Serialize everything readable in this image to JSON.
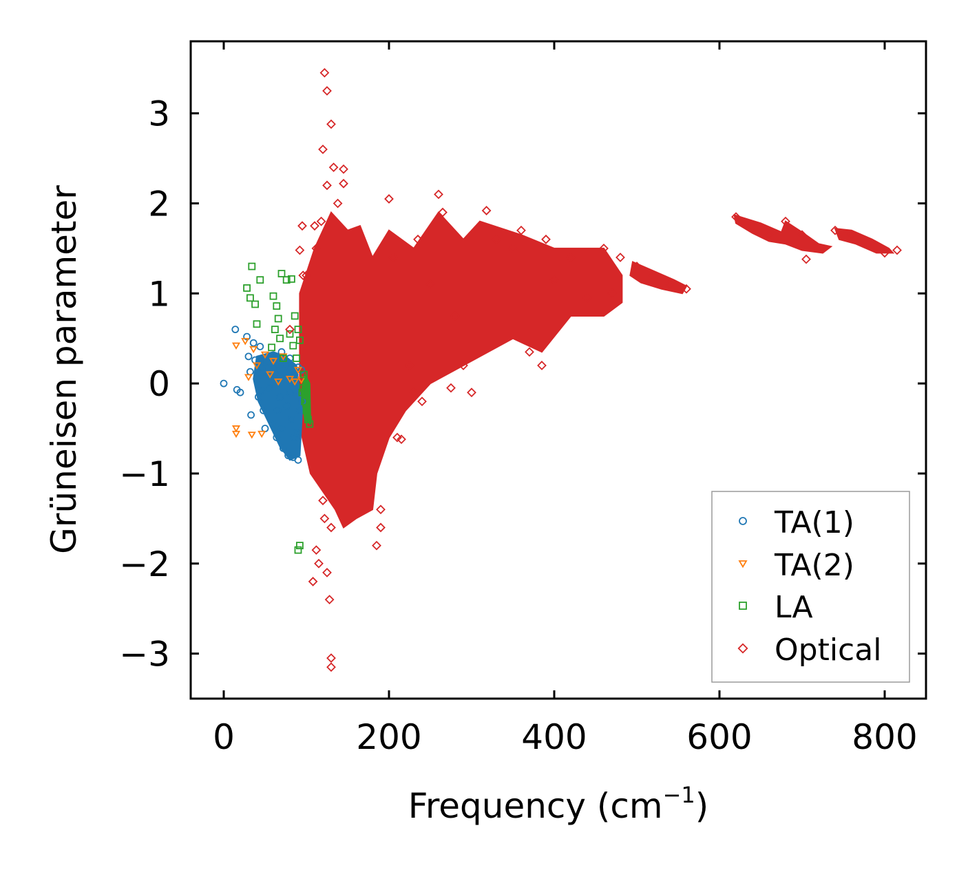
{
  "chart_data": {
    "type": "scatter",
    "xlabel": "Frequency (cm",
    "xlabel_superscript": "−1",
    "xlabel_suffix": ")",
    "ylabel": "Grüneisen parameter",
    "xlim": [
      -40,
      850
    ],
    "ylim": [
      -3.5,
      3.8
    ],
    "x_ticks": [
      0,
      200,
      400,
      600,
      800
    ],
    "x_tick_labels": [
      "0",
      "200",
      "400",
      "600",
      "800"
    ],
    "y_ticks": [
      -3,
      -2,
      -1,
      0,
      1,
      2,
      3
    ],
    "y_tick_labels": [
      "−3",
      "−2",
      "−1",
      "0",
      "1",
      "2",
      "3"
    ],
    "legend_position": "lower-right",
    "series": [
      {
        "name": "TA(1)",
        "marker": "circle",
        "color": "#1f77b4",
        "points": [
          [
            0,
            0
          ],
          [
            14,
            0.6
          ],
          [
            16,
            -0.07
          ],
          [
            20,
            -0.1
          ],
          [
            28,
            0.52
          ],
          [
            30,
            0.3
          ],
          [
            32,
            0.13
          ],
          [
            33,
            -0.35
          ],
          [
            36,
            0.45
          ],
          [
            38,
            0.26
          ],
          [
            40,
            0.05
          ],
          [
            42,
            -0.15
          ],
          [
            44,
            0.41
          ],
          [
            46,
            0.18
          ],
          [
            48,
            -0.3
          ],
          [
            50,
            -0.5
          ],
          [
            52,
            0.24
          ],
          [
            55,
            -0.05
          ],
          [
            58,
            0.3
          ],
          [
            60,
            -0.45
          ],
          [
            62,
            0.12
          ],
          [
            64,
            -0.6
          ],
          [
            66,
            0.2
          ],
          [
            68,
            -0.15
          ],
          [
            70,
            0.35
          ],
          [
            72,
            -0.72
          ],
          [
            74,
            0.05
          ],
          [
            76,
            -0.25
          ],
          [
            78,
            -0.8
          ],
          [
            80,
            0.28
          ],
          [
            82,
            -0.4
          ],
          [
            84,
            -0.82
          ],
          [
            86,
            0.1
          ],
          [
            88,
            -0.55
          ],
          [
            90,
            -0.85
          ],
          [
            92,
            -0.3
          ],
          [
            94,
            0.15
          ],
          [
            45,
            -0.08
          ],
          [
            55,
            0.1
          ],
          [
            65,
            -0.3
          ],
          [
            75,
            0.2
          ],
          [
            85,
            -0.6
          ],
          [
            95,
            -0.2
          ],
          [
            60,
            0.05
          ],
          [
            70,
            -0.5
          ],
          [
            80,
            -0.1
          ],
          [
            90,
            0.18
          ]
        ]
      },
      {
        "name": "TA(2)",
        "marker": "triangle-down",
        "color": "#ff7f0e",
        "points": [
          [
            15,
            0.42
          ],
          [
            15,
            -0.5
          ],
          [
            15,
            -0.56
          ],
          [
            26,
            0.47
          ],
          [
            30,
            0.07
          ],
          [
            34,
            -0.57
          ],
          [
            36,
            0.38
          ],
          [
            40,
            0.2
          ],
          [
            46,
            -0.56
          ],
          [
            50,
            0.32
          ],
          [
            56,
            0.1
          ],
          [
            60,
            0.25
          ],
          [
            66,
            0.02
          ],
          [
            72,
            0.3
          ],
          [
            80,
            0.05
          ],
          [
            86,
            0.02
          ],
          [
            90,
            0.15
          ],
          [
            94,
            0.04
          ]
        ]
      },
      {
        "name": "LA",
        "marker": "square",
        "color": "#2ca02c",
        "points": [
          [
            34,
            1.3
          ],
          [
            28,
            1.06
          ],
          [
            32,
            0.95
          ],
          [
            38,
            0.88
          ],
          [
            40,
            0.66
          ],
          [
            44,
            1.15
          ],
          [
            58,
            0.4
          ],
          [
            60,
            0.97
          ],
          [
            62,
            0.6
          ],
          [
            64,
            0.86
          ],
          [
            66,
            0.72
          ],
          [
            68,
            0.5
          ],
          [
            70,
            1.22
          ],
          [
            72,
            0.28
          ],
          [
            76,
            1.15
          ],
          [
            80,
            0.55
          ],
          [
            82,
            1.16
          ],
          [
            84,
            0.42
          ],
          [
            86,
            0.75
          ],
          [
            88,
            0.28
          ],
          [
            90,
            0.6
          ],
          [
            92,
            0.48
          ],
          [
            96,
            -0.05
          ],
          [
            98,
            -0.2
          ],
          [
            100,
            -0.3
          ],
          [
            102,
            -0.4
          ],
          [
            104,
            -0.45
          ],
          [
            90,
            -1.85
          ],
          [
            92,
            -1.8
          ],
          [
            95,
            -0.1
          ],
          [
            97,
            0.1
          ]
        ]
      },
      {
        "name": "Optical",
        "marker": "diamond",
        "color": "#d62728",
        "points": [
          [
            122,
            3.45
          ],
          [
            125,
            3.25
          ],
          [
            130,
            2.88
          ],
          [
            120,
            2.6
          ],
          [
            133,
            2.4
          ],
          [
            145,
            2.38
          ],
          [
            145,
            2.22
          ],
          [
            125,
            2.2
          ],
          [
            138,
            2.0
          ],
          [
            95,
            1.75
          ],
          [
            92,
            1.48
          ],
          [
            96,
            1.2
          ],
          [
            80,
            0.6
          ],
          [
            100,
            1.2
          ],
          [
            110,
            1.75
          ],
          [
            112,
            1.5
          ],
          [
            118,
            1.8
          ],
          [
            120,
            -1.3
          ],
          [
            122,
            -1.5
          ],
          [
            130,
            -1.6
          ],
          [
            112,
            -1.85
          ],
          [
            115,
            -2.0
          ],
          [
            108,
            -2.2
          ],
          [
            125,
            -2.1
          ],
          [
            128,
            -2.4
          ],
          [
            130,
            -3.05
          ],
          [
            130,
            -3.15
          ],
          [
            185,
            -1.8
          ],
          [
            190,
            -1.6
          ],
          [
            190,
            -1.4
          ],
          [
            200,
            2.05
          ],
          [
            205,
            1.4
          ],
          [
            210,
            -0.6
          ],
          [
            215,
            -0.62
          ],
          [
            225,
            0.2
          ],
          [
            230,
            -0.1
          ],
          [
            235,
            1.6
          ],
          [
            240,
            -0.2
          ],
          [
            250,
            1.1
          ],
          [
            260,
            2.1
          ],
          [
            265,
            1.9
          ],
          [
            275,
            -0.05
          ],
          [
            280,
            0.75
          ],
          [
            290,
            0.2
          ],
          [
            300,
            -0.1
          ],
          [
            318,
            1.92
          ],
          [
            330,
            1.6
          ],
          [
            350,
            1.5
          ],
          [
            360,
            1.7
          ],
          [
            370,
            0.35
          ],
          [
            385,
            0.2
          ],
          [
            390,
            1.6
          ],
          [
            400,
            1.15
          ],
          [
            420,
            1.4
          ],
          [
            440,
            0.95
          ],
          [
            460,
            1.5
          ],
          [
            470,
            1.0
          ],
          [
            480,
            1.4
          ],
          [
            500,
            1.3
          ],
          [
            520,
            1.2
          ],
          [
            540,
            1.1
          ],
          [
            560,
            1.05
          ],
          [
            620,
            1.85
          ],
          [
            640,
            1.75
          ],
          [
            660,
            1.65
          ],
          [
            680,
            1.8
          ],
          [
            700,
            1.65
          ],
          [
            705,
            1.38
          ],
          [
            720,
            1.5
          ],
          [
            740,
            1.7
          ],
          [
            760,
            1.65
          ],
          [
            780,
            1.55
          ],
          [
            800,
            1.45
          ],
          [
            815,
            1.48
          ]
        ]
      }
    ]
  }
}
